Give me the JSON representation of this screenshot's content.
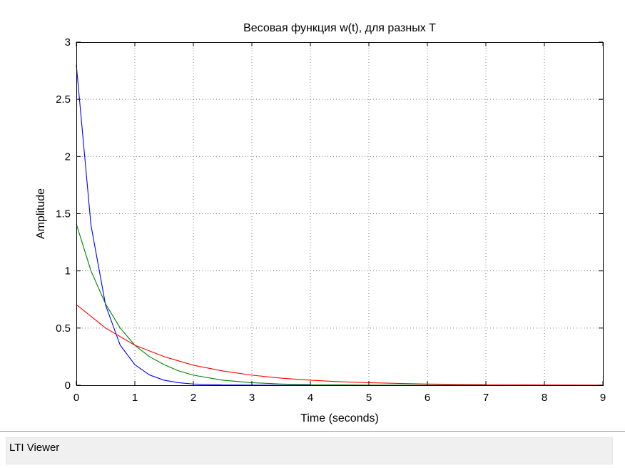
{
  "window": {
    "status_label": "LTI Viewer"
  },
  "colors": {
    "axes": "#000000",
    "grid": "#808080",
    "background": "#ffffff"
  },
  "chart_data": {
    "type": "line",
    "title": "Весовая функция w(t), для разных T",
    "xlabel": "Time (seconds)",
    "ylabel": "Amplitude",
    "xlim": [
      0,
      9
    ],
    "ylim": [
      0,
      3
    ],
    "xticks": [
      0,
      1,
      2,
      3,
      4,
      5,
      6,
      7,
      8,
      9
    ],
    "yticks": [
      0,
      0.5,
      1,
      1.5,
      2,
      2.5,
      3
    ],
    "ytick_labels": [
      "0",
      "0.5",
      "1",
      "1.5",
      "2",
      "2.5",
      "3"
    ],
    "grid": true,
    "series": [
      {
        "color": "#0000ff",
        "x": [
          0,
          0.25,
          0.5,
          0.75,
          1.0,
          1.25,
          1.5,
          1.75,
          2.0,
          2.5,
          3.0,
          3.5,
          4.0
        ],
        "y": [
          2.8,
          1.4,
          0.7,
          0.35,
          0.18,
          0.09,
          0.044,
          0.022,
          0.011,
          0.003,
          0.001,
          0.0,
          0.0
        ]
      },
      {
        "color": "#008000",
        "x": [
          0,
          0.25,
          0.5,
          0.75,
          1.0,
          1.25,
          1.5,
          1.75,
          2.0,
          2.5,
          3.0,
          3.5,
          4.0,
          5.0,
          6.0,
          7.0
        ],
        "y": [
          1.41,
          1.0,
          0.71,
          0.5,
          0.35,
          0.25,
          0.18,
          0.125,
          0.088,
          0.044,
          0.022,
          0.011,
          0.0055,
          0.0014,
          0.0003,
          0.0
        ]
      },
      {
        "color": "#ff0000",
        "x": [
          0,
          0.5,
          1.0,
          1.5,
          2.0,
          2.5,
          3.0,
          3.5,
          4.0,
          4.5,
          5.0,
          5.5,
          6.0,
          6.5,
          7.0,
          8.0,
          9.0
        ],
        "y": [
          0.705,
          0.5,
          0.35,
          0.25,
          0.175,
          0.125,
          0.088,
          0.062,
          0.044,
          0.031,
          0.022,
          0.016,
          0.011,
          0.0078,
          0.0055,
          0.0028,
          0.0014
        ]
      }
    ]
  }
}
